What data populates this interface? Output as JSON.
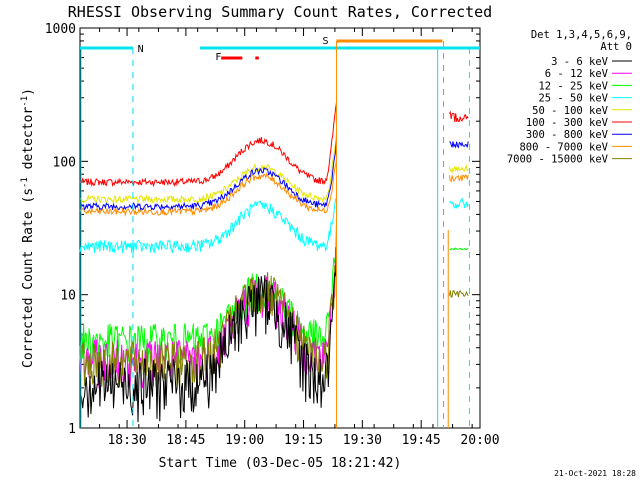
{
  "chart_data": {
    "type": "line",
    "title": "RHESSI Observing Summary Count Rates, Corrected",
    "xlabel": "Start Time (03-Dec-05 18:21:42)",
    "ylabel": "Corrected Count Rate (s",
    "ylabel_sup1": "-1",
    "ylabel_mid": " detector",
    "ylabel_sup2": "-1",
    "ylabel_end": ")",
    "yscale": "log",
    "ylim": [
      1,
      1000
    ],
    "xlim_minutes": [
      18.3,
      20.0
    ],
    "x_tick_labels": [
      "18:30",
      "18:45",
      "19:00",
      "19:15",
      "19:30",
      "19:45",
      "20:00"
    ],
    "x_tick_hours": [
      18.5,
      18.75,
      19.0,
      19.25,
      19.5,
      19.75,
      20.0
    ],
    "y_tick_labels": [
      "1",
      "10",
      "100",
      "1000"
    ],
    "y_tick_values": [
      1,
      10,
      100,
      1000
    ],
    "legend_header": [
      "Det 1,3,4,5,6,9,",
      "Att 0"
    ],
    "legend_placement": "right",
    "series": [
      {
        "name": "3 - 6 keV",
        "color": "#000000"
      },
      {
        "name": "6 - 12 keV",
        "color": "#ff00ff"
      },
      {
        "name": "12 - 25 keV",
        "color": "#00ff00"
      },
      {
        "name": "25 - 50 keV",
        "color": "#00ffff"
      },
      {
        "name": "50 - 100 keV",
        "color": "#e6e600"
      },
      {
        "name": "100 - 300 keV",
        "color": "#ff0000"
      },
      {
        "name": "300 - 800 keV",
        "color": "#0000ff"
      },
      {
        "name": "800 - 7000 keV",
        "color": "#ff8c00"
      },
      {
        "name": "7000 - 15000 keV",
        "color": "#808000"
      }
    ],
    "state_flags": {
      "N_label": "N",
      "F_label": "F",
      "S_label": "S"
    },
    "footer_date": "21-Oct-2021 18:28"
  }
}
